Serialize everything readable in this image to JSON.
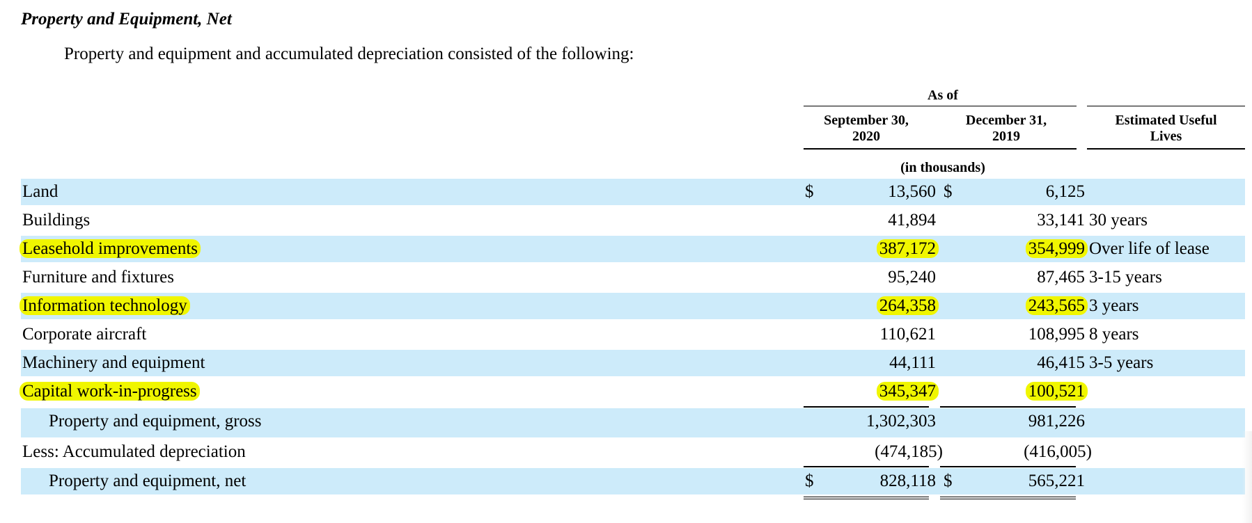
{
  "title": "Property and Equipment, Net",
  "intro": "Property and equipment and accumulated depreciation consisted of the following:",
  "header": {
    "as_of": "As of",
    "col1_line1": "September 30,",
    "col1_line2": "2020",
    "col2_line1": "December 31,",
    "col2_line2": "2019",
    "col3_line1": "Estimated Useful",
    "col3_line2": "Lives",
    "units": "(in thousands)"
  },
  "rows": [
    {
      "label": "Land",
      "d1": "$",
      "v1": "13,560",
      "d2": "$",
      "v2": "6,125",
      "life": ""
    },
    {
      "label": "Buildings",
      "d1": "",
      "v1": "41,894",
      "d2": "",
      "v2": "33,141",
      "life": "30 years"
    },
    {
      "label": "Leasehold improvements",
      "d1": "",
      "v1": "387,172",
      "d2": "",
      "v2": "354,999",
      "life": "Over life of lease"
    },
    {
      "label": "Furniture and fixtures",
      "d1": "",
      "v1": "95,240",
      "d2": "",
      "v2": "87,465",
      "life": "3-15 years"
    },
    {
      "label": "Information technology",
      "d1": "",
      "v1": "264,358",
      "d2": "",
      "v2": "243,565",
      "life": "3 years"
    },
    {
      "label": "Corporate aircraft",
      "d1": "",
      "v1": "110,621",
      "d2": "",
      "v2": "108,995",
      "life": "8 years"
    },
    {
      "label": "Machinery and equipment",
      "d1": "",
      "v1": "44,111",
      "d2": "",
      "v2": "46,415",
      "life": "3-5 years"
    },
    {
      "label": "Capital work-in-progress",
      "d1": "",
      "v1": "345,347",
      "d2": "",
      "v2": "100,521",
      "life": ""
    },
    {
      "label": "Property and equipment, gross",
      "d1": "",
      "v1": "1,302,303",
      "d2": "",
      "v2": "981,226",
      "life": ""
    },
    {
      "label": "Less: Accumulated depreciation",
      "d1": "",
      "v1": "(474,185)",
      "d2": "",
      "v2": "(416,005)",
      "life": ""
    },
    {
      "label": "Property and equipment, net",
      "d1": "$",
      "v1": "828,118",
      "d2": "$",
      "v2": "565,221",
      "life": ""
    }
  ],
  "highlight_color": "#f0f600",
  "row_shade_color": "#cdebfa"
}
